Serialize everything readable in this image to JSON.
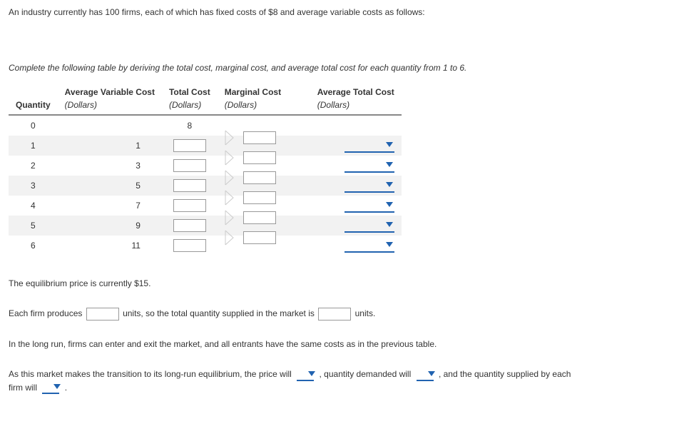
{
  "intro": "An industry currently has 100 firms, each of which has fixed costs of $8 and average variable costs as follows:",
  "instruction": "Complete the following table by deriving the total cost, marginal cost, and average total cost for each quantity from 1 to 6.",
  "table": {
    "headers": {
      "quantity": "Quantity",
      "avc": "Average Variable Cost",
      "tc": "Total Cost",
      "mc": "Marginal Cost",
      "atc": "Average Total Cost",
      "unit": "(Dollars)"
    },
    "rows": [
      {
        "q": "0",
        "avc": "",
        "tc_fixed": "8"
      },
      {
        "q": "1",
        "avc": "1"
      },
      {
        "q": "2",
        "avc": "3"
      },
      {
        "q": "3",
        "avc": "5"
      },
      {
        "q": "4",
        "avc": "7"
      },
      {
        "q": "5",
        "avc": "9"
      },
      {
        "q": "6",
        "avc": "11"
      }
    ]
  },
  "colors": {
    "accent": "#2163b0",
    "shade": "#f2f2f2",
    "border": "#888888",
    "bracket": "#cccccc"
  },
  "eq_text": "The equilibrium price is currently $15.",
  "firm_produces_pre": "Each firm produces",
  "firm_produces_mid": "units, so the total quantity supplied in the market is",
  "firm_produces_post": "units.",
  "longrun_text": "In the long run, firms can enter and exit the market, and all entrants have the same costs as in the previous table.",
  "transition_pre": "As this market makes the transition to its long-run equilibrium, the price will",
  "transition_mid1": ", quantity demanded will",
  "transition_mid2": ", and the quantity supplied by each",
  "transition_line2_pre": "firm will",
  "transition_end": "."
}
